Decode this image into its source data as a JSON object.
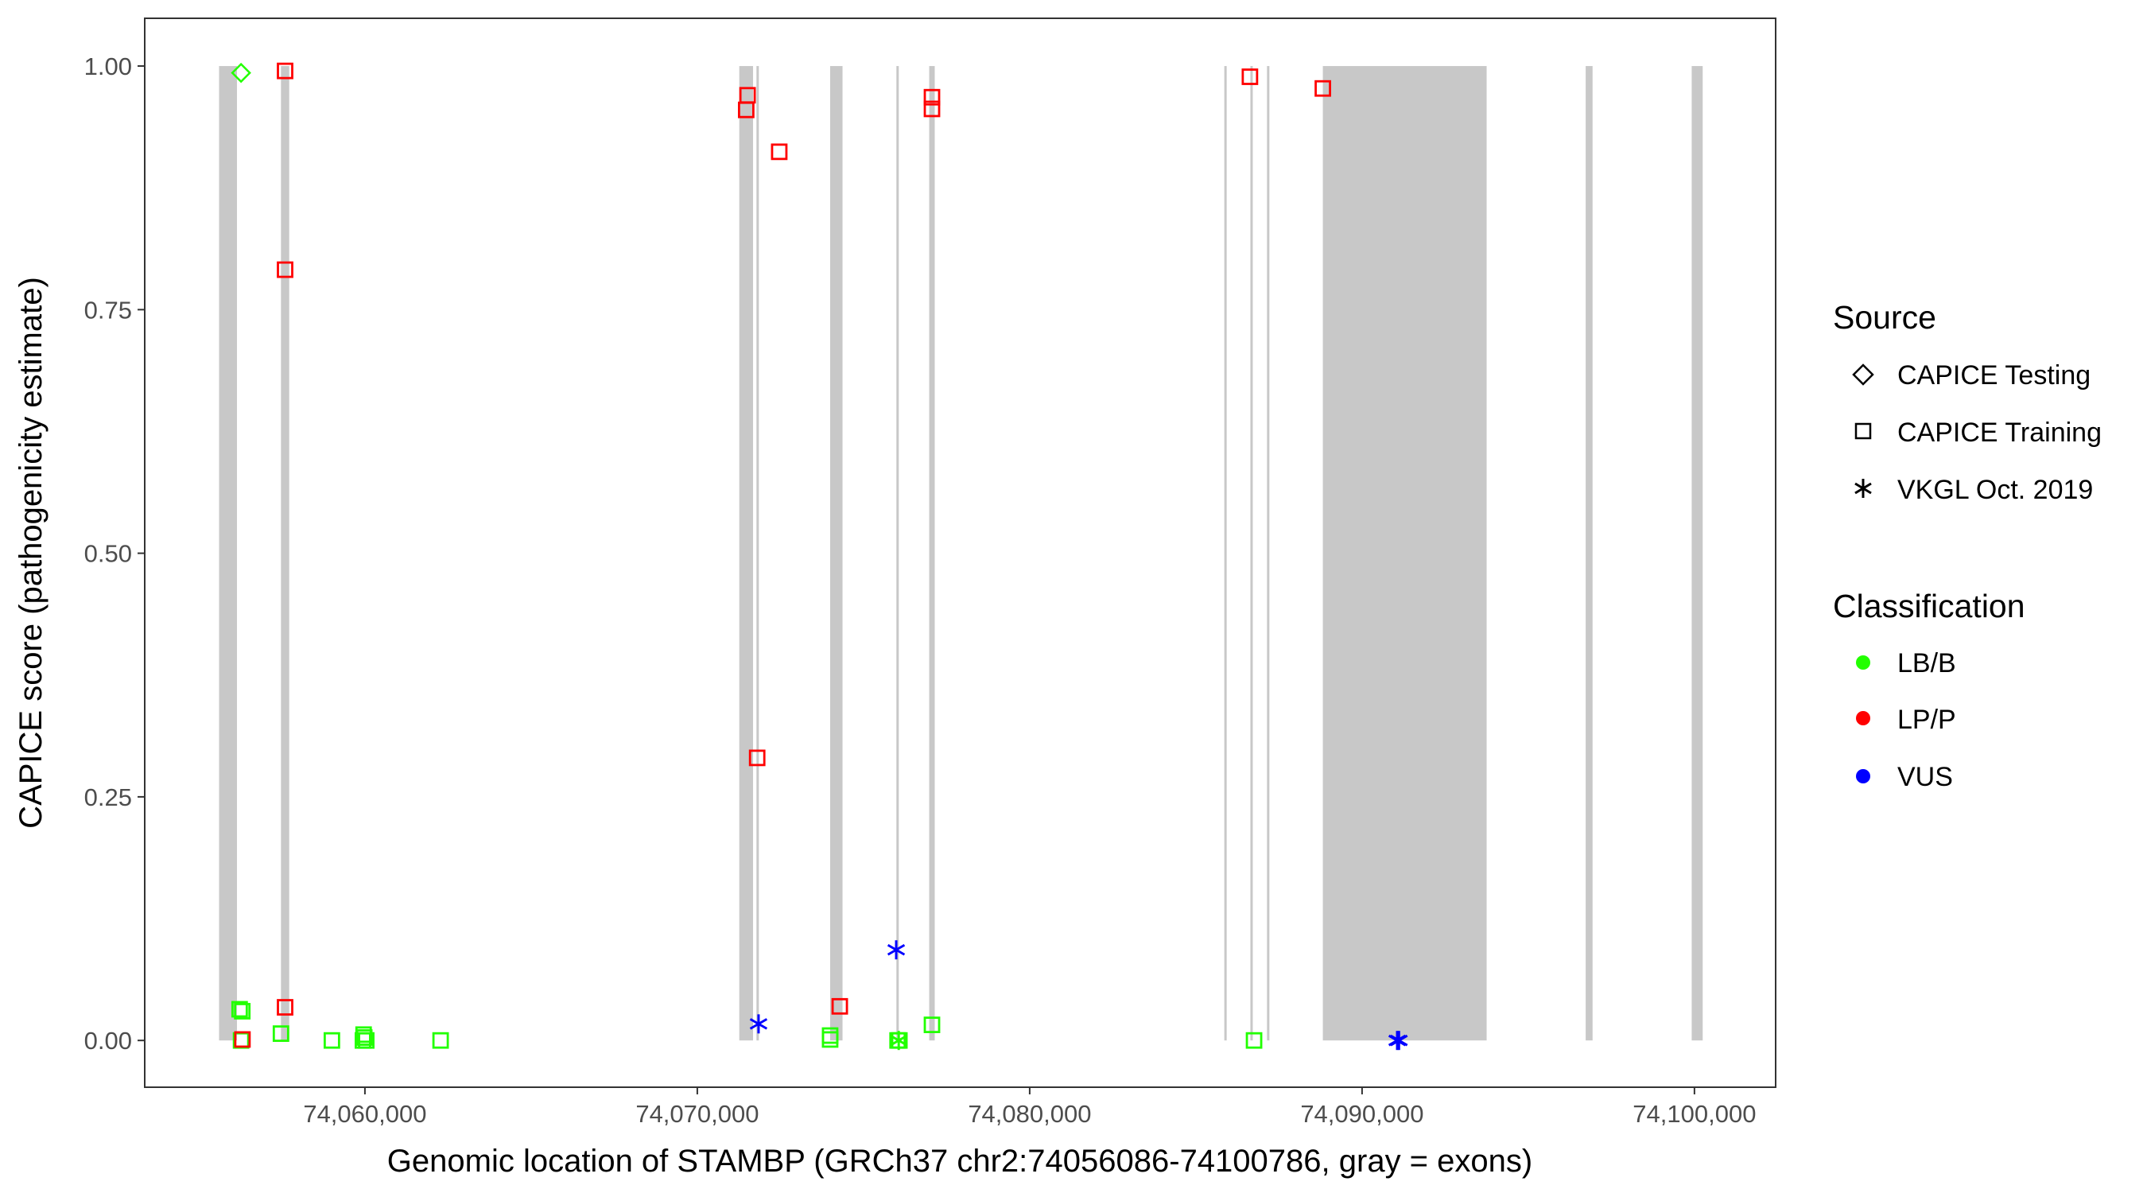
{
  "chart_data": {
    "type": "scatter",
    "title": "",
    "xlabel": "Genomic location of STAMBP (GRCh37 chr2:74056086-74100786, gray = exons)",
    "ylabel": "CAPICE score (pathogenicity estimate)",
    "xlim": [
      74053375,
      74102443
    ],
    "ylim": [
      -0.048,
      1.049
    ],
    "x_ticks": [
      74060000,
      74070000,
      74080000,
      74090000,
      74100000
    ],
    "x_tick_labels": [
      "74,060,000",
      "74,070,000",
      "74,080,000",
      "74,090,000",
      "74,100,000"
    ],
    "y_ticks": [
      0,
      0.25,
      0.5,
      0.75,
      1.0
    ],
    "y_tick_labels": [
      "0.00",
      "0.25",
      "0.50",
      "0.75",
      "1.00"
    ],
    "grid": false,
    "exon_color": "#c8c8c8",
    "exons": [
      [
        74055611,
        74056150
      ],
      [
        74057474,
        74057722
      ],
      [
        74071263,
        74071677
      ],
      [
        74071780,
        74071830
      ],
      [
        74073996,
        74074369
      ],
      [
        74075990,
        74076060
      ],
      [
        74076977,
        74077143
      ],
      [
        74085855,
        74085905
      ],
      [
        74086640,
        74086690
      ],
      [
        74087140,
        74087190
      ],
      [
        74088820,
        74093748
      ],
      [
        74096728,
        74096935
      ],
      [
        74099917,
        74100248
      ]
    ],
    "legend_position": "right",
    "legend_source": {
      "title": "Source",
      "items": [
        {
          "label": "CAPICE Testing",
          "shape": "diamond"
        },
        {
          "label": "CAPICE Training",
          "shape": "square"
        },
        {
          "label": "VKGL Oct. 2019",
          "shape": "asterisk"
        }
      ]
    },
    "legend_classification": {
      "title": "Classification",
      "items": [
        {
          "label": "LB/B",
          "color": "#22ff00"
        },
        {
          "label": "LP/P",
          "color": "#ff0000"
        },
        {
          "label": "VUS",
          "color": "#0000ff"
        }
      ]
    },
    "points": [
      {
        "x": 74056273,
        "y": 0.993,
        "source": "CAPICE Testing",
        "class": "LB/B"
      },
      {
        "x": 74056230,
        "y": 0.032,
        "source": "CAPICE Training",
        "class": "LB/B"
      },
      {
        "x": 74056310,
        "y": 0.03,
        "source": "CAPICE Training",
        "class": "LB/B"
      },
      {
        "x": 74056273,
        "y": 0.0,
        "source": "CAPICE Training",
        "class": "LB/B"
      },
      {
        "x": 74057474,
        "y": 0.007,
        "source": "CAPICE Training",
        "class": "LB/B"
      },
      {
        "x": 74059006,
        "y": 0.0,
        "source": "CAPICE Training",
        "class": "LB/B"
      },
      {
        "x": 74059960,
        "y": 0.006,
        "source": "CAPICE Training",
        "class": "LB/B"
      },
      {
        "x": 74059980,
        "y": 0.003,
        "source": "CAPICE Training",
        "class": "LB/B"
      },
      {
        "x": 74059940,
        "y": 0.0,
        "source": "CAPICE Training",
        "class": "LB/B"
      },
      {
        "x": 74060040,
        "y": 0.0,
        "source": "CAPICE Training",
        "class": "LB/B"
      },
      {
        "x": 74062277,
        "y": 0.0,
        "source": "CAPICE Training",
        "class": "LB/B"
      },
      {
        "x": 74073996,
        "y": 0.005,
        "source": "CAPICE Training",
        "class": "LB/B"
      },
      {
        "x": 74073996,
        "y": 0.001,
        "source": "CAPICE Training",
        "class": "LB/B"
      },
      {
        "x": 74076025,
        "y": 0.0,
        "source": "CAPICE Training",
        "class": "LB/B"
      },
      {
        "x": 74076080,
        "y": 0.0,
        "source": "CAPICE Training",
        "class": "LB/B"
      },
      {
        "x": 74076060,
        "y": 0.0,
        "source": "VKGL Oct. 2019",
        "class": "LB/B"
      },
      {
        "x": 74077060,
        "y": 0.016,
        "source": "CAPICE Training",
        "class": "LB/B"
      },
      {
        "x": 74086750,
        "y": 0.0,
        "source": "CAPICE Training",
        "class": "LB/B"
      },
      {
        "x": 74057598,
        "y": 0.995,
        "source": "CAPICE Training",
        "class": "LP/P"
      },
      {
        "x": 74057598,
        "y": 0.791,
        "source": "CAPICE Training",
        "class": "LP/P"
      },
      {
        "x": 74057598,
        "y": 0.034,
        "source": "CAPICE Training",
        "class": "LP/P"
      },
      {
        "x": 74056315,
        "y": 0.001,
        "source": "CAPICE Training",
        "class": "LP/P"
      },
      {
        "x": 74071512,
        "y": 0.97,
        "source": "CAPICE Training",
        "class": "LP/P"
      },
      {
        "x": 74071471,
        "y": 0.955,
        "source": "CAPICE Training",
        "class": "LP/P"
      },
      {
        "x": 74072465,
        "y": 0.912,
        "source": "CAPICE Training",
        "class": "LP/P"
      },
      {
        "x": 74071801,
        "y": 0.29,
        "source": "CAPICE Training",
        "class": "LP/P"
      },
      {
        "x": 74074286,
        "y": 0.035,
        "source": "CAPICE Training",
        "class": "LP/P"
      },
      {
        "x": 74077060,
        "y": 0.968,
        "source": "CAPICE Training",
        "class": "LP/P"
      },
      {
        "x": 74077060,
        "y": 0.956,
        "source": "CAPICE Training",
        "class": "LP/P"
      },
      {
        "x": 74086626,
        "y": 0.989,
        "source": "CAPICE Training",
        "class": "LP/P"
      },
      {
        "x": 74088820,
        "y": 0.977,
        "source": "CAPICE Training",
        "class": "LP/P"
      },
      {
        "x": 74071843,
        "y": 0.017,
        "source": "VKGL Oct. 2019",
        "class": "VUS"
      },
      {
        "x": 74075984,
        "y": 0.093,
        "source": "VKGL Oct. 2019",
        "class": "VUS"
      },
      {
        "x": 74091056,
        "y": 0.0,
        "source": "VKGL Oct. 2019",
        "class": "VUS"
      },
      {
        "x": 74091110,
        "y": 0.0,
        "source": "VKGL Oct. 2019",
        "class": "VUS"
      }
    ]
  }
}
